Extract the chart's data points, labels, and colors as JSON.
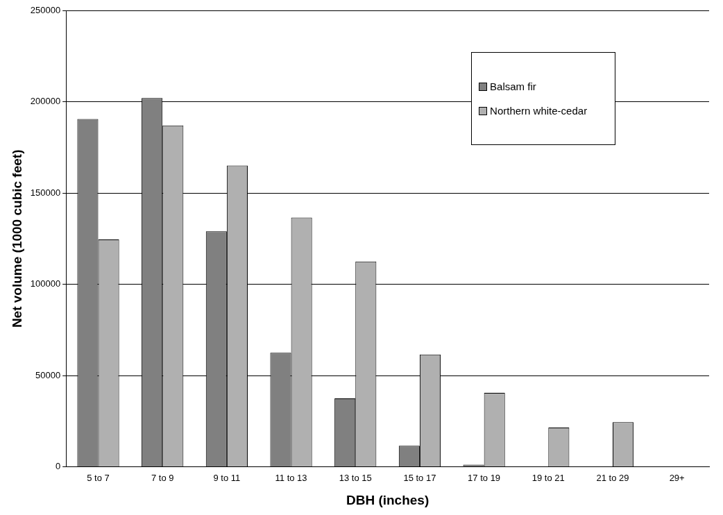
{
  "chart_data": {
    "type": "bar",
    "xlabel": "DBH (inches)",
    "ylabel": "Net volume (1000 cubic feet)",
    "categories": [
      "5 to 7",
      "7 to 9",
      "9 to 11",
      "11 to 13",
      "13 to 15",
      "15 to 17",
      "17 to 19",
      "19 to 21",
      "21 to 29",
      "29+"
    ],
    "series": [
      {
        "name": "Balsam fir",
        "color": "#808080",
        "values": [
          190500,
          202000,
          129000,
          62500,
          37500,
          11500,
          1200,
          0,
          0,
          0
        ]
      },
      {
        "name": "Northern white-cedar",
        "color": "#b0b0b0",
        "values": [
          124500,
          187000,
          165000,
          136500,
          112500,
          61500,
          40500,
          21500,
          24500,
          0
        ]
      }
    ],
    "ylim": [
      0,
      250000
    ],
    "yticks": [
      0,
      50000,
      100000,
      150000,
      200000,
      250000
    ],
    "grid": "y",
    "legend": "top right"
  }
}
